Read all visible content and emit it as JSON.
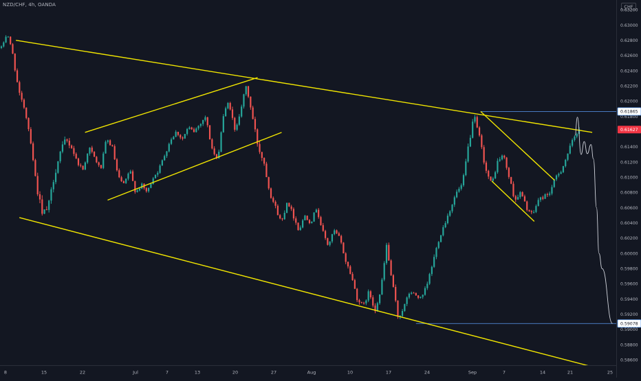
{
  "header": {
    "symbol": "NZD/CHF, 4h, OANDA",
    "currency_badge": "CHF"
  },
  "colors": {
    "background": "#131722",
    "up_candle": "#26a69a",
    "down_candle": "#ef5350",
    "trendline": "#f2e600",
    "projection": "#d1d4dc",
    "level_line": "#5b9cf6",
    "last_price_bg": "#f23645"
  },
  "chart_data": {
    "type": "candlestick",
    "title": "NZD/CHF, 4h, OANDA",
    "xlabel": "",
    "ylabel": "",
    "y_axis_side": "right",
    "ylim": [
      0.5853,
      0.6333
    ],
    "y_ticks": [
      "0.63200",
      "0.63000",
      "0.62800",
      "0.62600",
      "0.62400",
      "0.62200",
      "0.62000",
      "0.61800",
      "0.61400",
      "0.61200",
      "0.61000",
      "0.60800",
      "0.60600",
      "0.60400",
      "0.60200",
      "0.60000",
      "0.59800",
      "0.59600",
      "0.59400",
      "0.59200",
      "0.59000",
      "0.58800",
      "0.58600"
    ],
    "x_tick_labels": [
      "8",
      "15",
      "22",
      "Jul",
      "7",
      "13",
      "20",
      "27",
      "Aug",
      "10",
      "17",
      "24",
      "Sep",
      "7",
      "14",
      "21",
      "25"
    ],
    "price_labels": [
      {
        "text": "0.61865",
        "value": 0.61865,
        "style": "level"
      },
      {
        "text": "0.61627",
        "value": 0.61627,
        "style": "last"
      },
      {
        "text": "0.59078",
        "value": 0.59078,
        "style": "level"
      }
    ],
    "path_points": [
      [
        0.627,
        0.05
      ],
      [
        0.629,
        0.04
      ],
      [
        0.626,
        0.07
      ],
      [
        0.621,
        0.08
      ],
      [
        0.619,
        0.04
      ],
      [
        0.615,
        0.07
      ],
      [
        0.609,
        0.1
      ],
      [
        0.605,
        0.15
      ],
      [
        0.606,
        0.08
      ],
      [
        0.61,
        0.1
      ],
      [
        0.613,
        0.09
      ],
      [
        0.615,
        0.08
      ],
      [
        0.614,
        0.07
      ],
      [
        0.612,
        0.06
      ],
      [
        0.611,
        0.05
      ],
      [
        0.614,
        0.06
      ],
      [
        0.6125,
        0.05
      ],
      [
        0.611,
        0.05
      ],
      [
        0.615,
        0.06
      ],
      [
        0.614,
        0.05
      ],
      [
        0.61,
        0.06
      ],
      [
        0.609,
        0.05
      ],
      [
        0.611,
        0.05
      ],
      [
        0.608,
        0.05
      ],
      [
        0.609,
        0.05
      ],
      [
        0.608,
        0.05
      ],
      [
        0.61,
        0.05
      ],
      [
        0.611,
        0.06
      ],
      [
        0.613,
        0.06
      ],
      [
        0.615,
        0.07
      ],
      [
        0.616,
        0.06
      ],
      [
        0.615,
        0.05
      ],
      [
        0.6165,
        0.06
      ],
      [
        0.616,
        0.05
      ],
      [
        0.617,
        0.05
      ],
      [
        0.618,
        0.06
      ],
      [
        0.614,
        0.07
      ],
      [
        0.612,
        0.06
      ],
      [
        0.618,
        0.07
      ],
      [
        0.62,
        0.06
      ],
      [
        0.616,
        0.08
      ],
      [
        0.619,
        0.07
      ],
      [
        0.622,
        0.07
      ],
      [
        0.618,
        0.07
      ],
      [
        0.614,
        0.09
      ],
      [
        0.612,
        0.08
      ],
      [
        0.608,
        0.07
      ],
      [
        0.606,
        0.07
      ],
      [
        0.604,
        0.07
      ],
      [
        0.607,
        0.06
      ],
      [
        0.605,
        0.06
      ],
      [
        0.603,
        0.06
      ],
      [
        0.605,
        0.05
      ],
      [
        0.604,
        0.05
      ],
      [
        0.606,
        0.06
      ],
      [
        0.603,
        0.06
      ],
      [
        0.601,
        0.06
      ],
      [
        0.603,
        0.05
      ],
      [
        0.602,
        0.05
      ],
      [
        0.599,
        0.07
      ],
      [
        0.597,
        0.06
      ],
      [
        0.594,
        0.07
      ],
      [
        0.593,
        0.06
      ],
      [
        0.595,
        0.06
      ],
      [
        0.5925,
        0.06
      ],
      [
        0.595,
        0.06
      ],
      [
        0.601,
        0.08
      ],
      [
        0.596,
        0.08
      ],
      [
        0.5915,
        0.09
      ],
      [
        0.593,
        0.06
      ],
      [
        0.595,
        0.06
      ],
      [
        0.5945,
        0.05
      ],
      [
        0.594,
        0.05
      ],
      [
        0.596,
        0.06
      ],
      [
        0.599,
        0.07
      ],
      [
        0.602,
        0.07
      ],
      [
        0.604,
        0.06
      ],
      [
        0.606,
        0.06
      ],
      [
        0.608,
        0.06
      ],
      [
        0.609,
        0.06
      ],
      [
        0.614,
        0.08
      ],
      [
        0.618,
        0.08
      ],
      [
        0.615,
        0.07
      ],
      [
        0.611,
        0.07
      ],
      [
        0.609,
        0.07
      ],
      [
        0.612,
        0.07
      ],
      [
        0.613,
        0.06
      ],
      [
        0.61,
        0.06
      ],
      [
        0.607,
        0.07
      ],
      [
        0.608,
        0.06
      ],
      [
        0.606,
        0.06
      ],
      [
        0.605,
        0.06
      ],
      [
        0.607,
        0.06
      ],
      [
        0.6075,
        0.06
      ],
      [
        0.608,
        0.06
      ],
      [
        0.61,
        0.06
      ],
      [
        0.611,
        0.06
      ],
      [
        0.613,
        0.07
      ],
      [
        0.615,
        0.07
      ],
      [
        0.6165,
        0.07
      ]
    ],
    "drawings": {
      "trendlines": [
        [
          [
            0.0258,
            0.628
          ],
          [
            0.961,
            0.6159
          ]
        ],
        [
          [
            0.0314,
            0.6047
          ],
          [
            0.961,
            0.5851
          ]
        ],
        [
          [
            0.138,
            0.6159
          ],
          [
            0.418,
            0.6231
          ]
        ],
        [
          [
            0.1746,
            0.607
          ],
          [
            0.457,
            0.6159
          ]
        ],
        [
          [
            0.78,
            0.61865
          ],
          [
            0.9,
            0.6096
          ]
        ],
        [
          [
            0.798,
            0.6095
          ],
          [
            0.867,
            0.6042
          ]
        ]
      ],
      "projection_path": [
        [
          0.933,
          0.6155
        ],
        [
          0.937,
          0.6179
        ],
        [
          0.943,
          0.613
        ],
        [
          0.948,
          0.6147
        ],
        [
          0.953,
          0.6131
        ],
        [
          0.959,
          0.6143
        ],
        [
          0.963,
          0.6124
        ],
        [
          0.968,
          0.606
        ],
        [
          0.972,
          0.6
        ],
        [
          0.977,
          0.598
        ],
        [
          0.994,
          0.59078
        ]
      ],
      "levels": [
        {
          "value": 0.61865,
          "from": 0.78
        },
        {
          "value": 0.59078,
          "from": 0.675
        }
      ]
    }
  }
}
